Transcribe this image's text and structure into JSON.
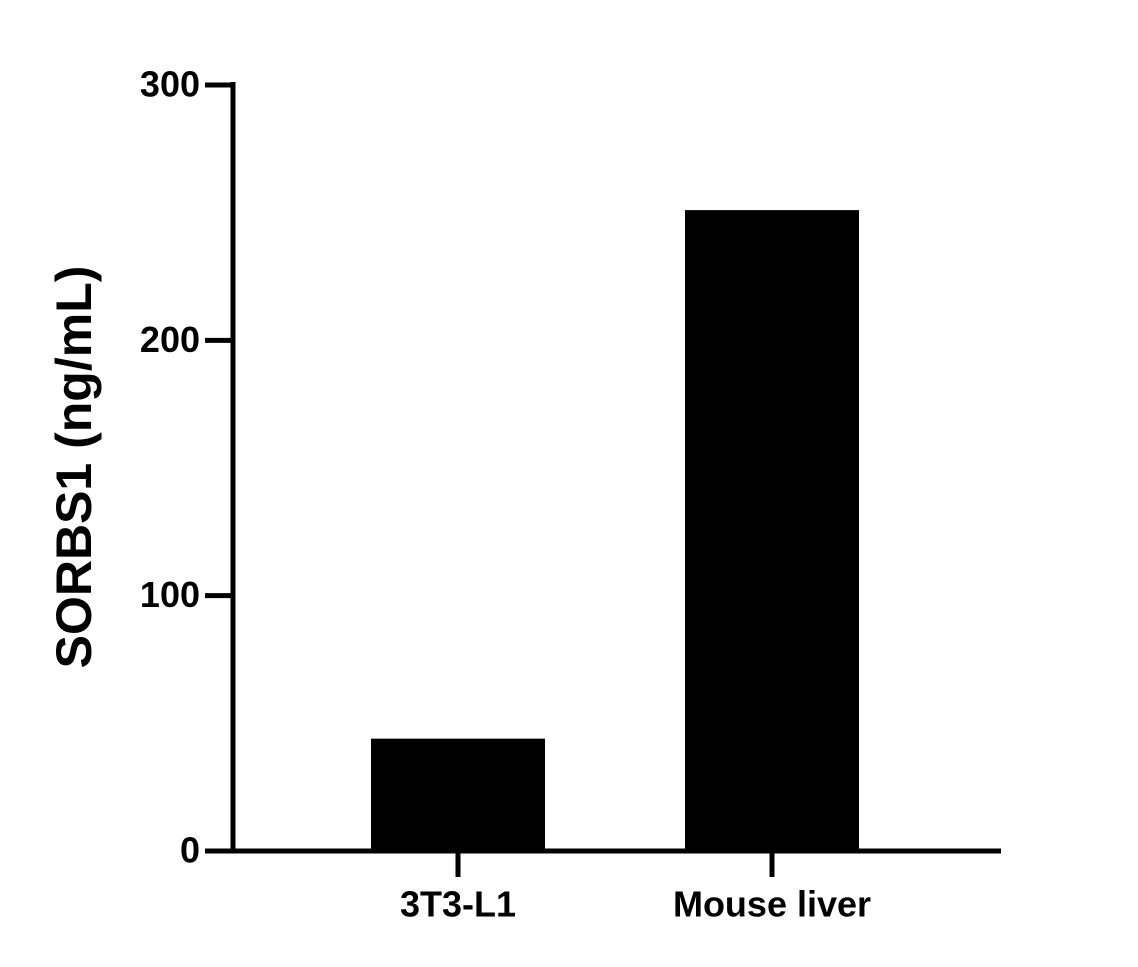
{
  "chart_data": {
    "type": "bar",
    "y_label": "SORBS1 (ng/mL)",
    "categories": [
      "3T3-L1",
      "Mouse liver"
    ],
    "values": [
      44,
      251
    ],
    "color": "#000000",
    "ylim": [
      0,
      300
    ],
    "yticks": [
      0,
      100,
      200,
      300
    ]
  }
}
